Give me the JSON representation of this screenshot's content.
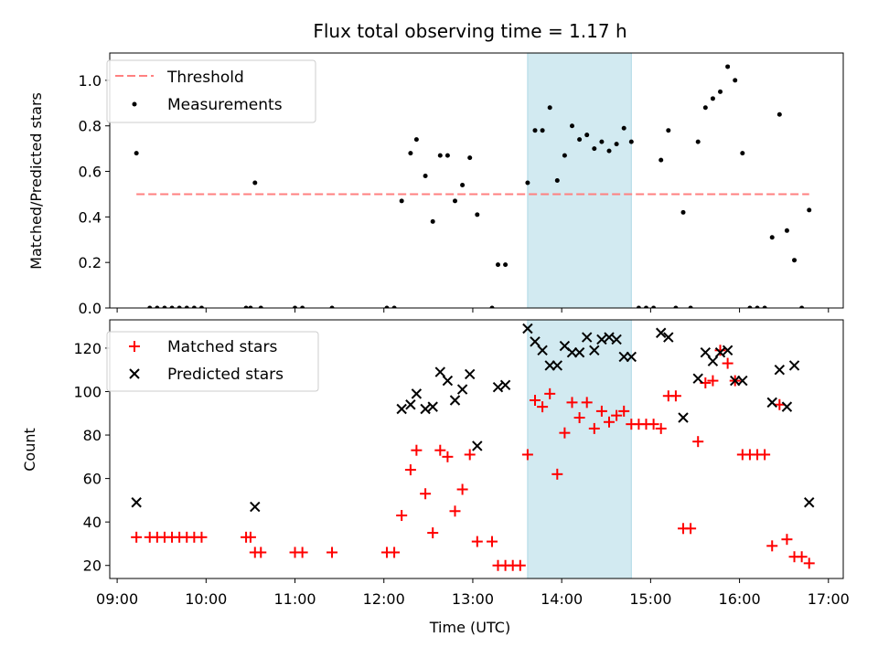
{
  "chart_data": [
    {
      "type": "scatter",
      "title": "Flux total observing time = 1.17 h",
      "xlabel": "",
      "ylabel": "Matched/Predicted stars",
      "xlim": [
        "08:55",
        "17:10"
      ],
      "ylim": [
        0,
        1.12
      ],
      "yticks": [
        "0.0",
        "0.2",
        "0.4",
        "0.6",
        "0.8",
        "1.0"
      ],
      "grid": false,
      "legend": {
        "position": "top-left",
        "entries": [
          "Threshold",
          "Measurements"
        ]
      },
      "highlight_span": {
        "start": "13:37",
        "end": "14:47",
        "color": "#add8e6"
      },
      "series": [
        {
          "name": "Threshold",
          "style": "dashed-line",
          "color": "#ff8080",
          "x": [
            "09:13",
            "16:47"
          ],
          "y": [
            0.5,
            0.5
          ]
        },
        {
          "name": "Measurements",
          "style": "dot",
          "color": "#000000",
          "x": [
            "09:13",
            "09:22",
            "09:27",
            "09:32",
            "09:37",
            "09:42",
            "09:47",
            "09:52",
            "09:57",
            "10:27",
            "10:30",
            "10:33",
            "10:37",
            "11:00",
            "11:05",
            "11:25",
            "12:02",
            "12:07",
            "12:12",
            "12:18",
            "12:22",
            "12:28",
            "12:33",
            "12:38",
            "12:43",
            "12:48",
            "12:53",
            "12:58",
            "13:03",
            "13:13",
            "13:17",
            "13:22",
            "13:37",
            "13:42",
            "13:47",
            "13:52",
            "13:57",
            "14:02",
            "14:07",
            "14:12",
            "14:17",
            "14:22",
            "14:27",
            "14:32",
            "14:37",
            "14:42",
            "14:47",
            "14:52",
            "14:57",
            "15:02",
            "15:07",
            "15:12",
            "15:17",
            "15:22",
            "15:27",
            "15:32",
            "15:37",
            "15:42",
            "15:47",
            "15:52",
            "15:57",
            "16:02",
            "16:07",
            "16:12",
            "16:17",
            "16:22",
            "16:27",
            "16:32",
            "16:37",
            "16:42",
            "16:47"
          ],
          "y": [
            0.68,
            0,
            0,
            0,
            0,
            0,
            0,
            0,
            0,
            0,
            0,
            0.55,
            0,
            0,
            0,
            0,
            0,
            0,
            0.47,
            0.68,
            0.74,
            0.58,
            0.38,
            0.67,
            0.67,
            0.47,
            0.54,
            0.66,
            0.41,
            0,
            0.19,
            0.19,
            0.55,
            0.78,
            0.78,
            0.88,
            0.56,
            0.67,
            0.8,
            0.74,
            0.76,
            0.7,
            0.73,
            0.69,
            0.72,
            0.79,
            0.73,
            0,
            0,
            0,
            0.65,
            0.78,
            0,
            0.42,
            0,
            0.73,
            0.88,
            0.92,
            0.95,
            1.06,
            1.0,
            0.68,
            0,
            0,
            0,
            0.31,
            0.85,
            0.34,
            0.21,
            0,
            0.43
          ]
        }
      ]
    },
    {
      "type": "scatter",
      "title": "",
      "xlabel": "Time (UTC)",
      "ylabel": "Count",
      "xlim": [
        "08:55",
        "17:10"
      ],
      "ylim": [
        14,
        133
      ],
      "xticks": [
        "09:00",
        "10:00",
        "11:00",
        "12:00",
        "13:00",
        "14:00",
        "15:00",
        "16:00",
        "17:00"
      ],
      "yticks": [
        "20",
        "40",
        "60",
        "80",
        "100",
        "120"
      ],
      "grid": false,
      "legend": {
        "position": "top-left",
        "entries": [
          "Matched stars",
          "Predicted stars"
        ]
      },
      "highlight_span": {
        "start": "13:37",
        "end": "14:47",
        "color": "#add8e6"
      },
      "series": [
        {
          "name": "Matched stars",
          "marker": "plus",
          "color": "#ff0000",
          "x": [
            "09:13",
            "09:22",
            "09:27",
            "09:32",
            "09:37",
            "09:42",
            "09:47",
            "09:52",
            "09:57",
            "10:27",
            "10:30",
            "10:33",
            "10:37",
            "11:00",
            "11:05",
            "11:25",
            "12:02",
            "12:07",
            "12:12",
            "12:18",
            "12:22",
            "12:28",
            "12:33",
            "12:38",
            "12:43",
            "12:48",
            "12:53",
            "12:58",
            "13:03",
            "13:13",
            "13:17",
            "13:22",
            "13:27",
            "13:32",
            "13:37",
            "13:42",
            "13:47",
            "13:52",
            "13:57",
            "14:02",
            "14:07",
            "14:12",
            "14:17",
            "14:22",
            "14:27",
            "14:32",
            "14:37",
            "14:42",
            "14:47",
            "14:52",
            "14:57",
            "15:02",
            "15:07",
            "15:12",
            "15:17",
            "15:22",
            "15:27",
            "15:32",
            "15:37",
            "15:42",
            "15:47",
            "15:52",
            "15:57",
            "16:02",
            "16:07",
            "16:12",
            "16:17",
            "16:22",
            "16:27",
            "16:32",
            "16:37",
            "16:42",
            "16:47"
          ],
          "y": [
            33,
            33,
            33,
            33,
            33,
            33,
            33,
            33,
            33,
            33,
            33,
            26,
            26,
            26,
            26,
            26,
            26,
            26,
            43,
            64,
            73,
            53,
            35,
            73,
            70,
            45,
            55,
            71,
            31,
            31,
            20,
            20,
            20,
            20,
            71,
            96,
            93,
            99,
            62,
            81,
            95,
            88,
            95,
            83,
            91,
            86,
            89,
            91,
            85,
            85,
            85,
            85,
            83,
            98,
            98,
            37,
            37,
            77,
            104,
            105,
            119,
            113,
            105,
            71,
            71,
            71,
            71,
            29,
            94,
            32,
            24,
            24,
            21
          ]
        },
        {
          "name": "Predicted stars",
          "marker": "x",
          "color": "#000000",
          "x": [
            "09:13",
            "10:33",
            "12:12",
            "12:18",
            "12:22",
            "12:28",
            "12:33",
            "12:38",
            "12:43",
            "12:48",
            "12:53",
            "12:58",
            "13:03",
            "13:17",
            "13:22",
            "13:37",
            "13:42",
            "13:47",
            "13:52",
            "13:57",
            "14:02",
            "14:07",
            "14:12",
            "14:17",
            "14:22",
            "14:27",
            "14:32",
            "14:37",
            "14:42",
            "14:47",
            "15:07",
            "15:12",
            "15:22",
            "15:32",
            "15:37",
            "15:42",
            "15:47",
            "15:52",
            "15:57",
            "16:02",
            "16:22",
            "16:27",
            "16:32",
            "16:37",
            "16:47"
          ],
          "y": [
            49,
            47,
            92,
            94,
            99,
            92,
            93,
            109,
            105,
            96,
            101,
            108,
            75,
            102,
            103,
            129,
            123,
            119,
            112,
            112,
            121,
            118,
            118,
            125,
            119,
            124,
            125,
            124,
            116,
            116,
            127,
            125,
            88,
            106,
            118,
            114,
            118,
            119,
            105,
            105,
            95,
            110,
            93,
            112,
            49
          ]
        }
      ]
    }
  ]
}
